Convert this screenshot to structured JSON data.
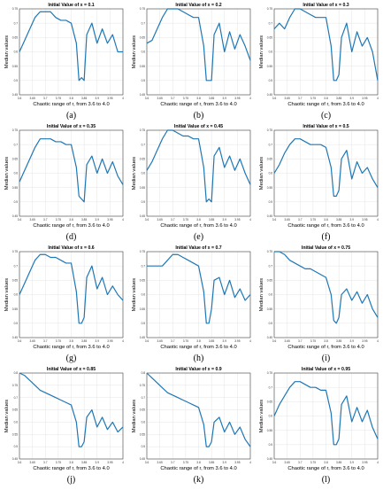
{
  "chart_data": [
    {
      "type": "line",
      "label": "(a)",
      "title": "Initial Value of x = 0.1",
      "xlabel": "Chaotic range of r, from 3.6 to 4.0",
      "ylabel": "Median values",
      "xlim": [
        3.6,
        4.0
      ],
      "ylim": [
        0.45,
        0.75
      ],
      "xticks": [
        "3.6",
        "3.65",
        "3.7",
        "3.75",
        "3.8",
        "3.85",
        "3.9",
        "3.95",
        "4"
      ],
      "yticks": [
        "0.45",
        "0.5",
        "0.55",
        "0.6",
        "0.65",
        "0.7",
        "0.75"
      ],
      "grid": true,
      "x": [
        3.6,
        3.62,
        3.64,
        3.66,
        3.68,
        3.7,
        3.72,
        3.74,
        3.76,
        3.78,
        3.8,
        3.82,
        3.83,
        3.84,
        3.85,
        3.86,
        3.88,
        3.9,
        3.92,
        3.94,
        3.96,
        3.98,
        4.0
      ],
      "y": [
        0.6,
        0.64,
        0.68,
        0.72,
        0.74,
        0.74,
        0.74,
        0.72,
        0.71,
        0.71,
        0.7,
        0.63,
        0.5,
        0.51,
        0.5,
        0.66,
        0.7,
        0.63,
        0.68,
        0.63,
        0.66,
        0.6,
        0.6
      ]
    },
    {
      "type": "line",
      "label": "(b)",
      "title": "Initial Value of x = 0.2",
      "xlabel": "Chaotic range of r, from 3.6 to 4.0",
      "ylabel": "Median values",
      "xlim": [
        3.6,
        4.0
      ],
      "ylim": [
        0.45,
        0.75
      ],
      "xticks": [
        "3.6",
        "3.65",
        "3.7",
        "3.75",
        "3.8",
        "3.85",
        "3.9",
        "3.95",
        "4"
      ],
      "yticks": [
        "0.45",
        "0.5",
        "0.55",
        "0.6",
        "0.65",
        "0.7",
        "0.75"
      ],
      "grid": true,
      "x": [
        3.6,
        3.62,
        3.64,
        3.66,
        3.68,
        3.7,
        3.72,
        3.74,
        3.76,
        3.78,
        3.8,
        3.82,
        3.83,
        3.84,
        3.85,
        3.86,
        3.88,
        3.9,
        3.92,
        3.94,
        3.96,
        3.98,
        4.0
      ],
      "y": [
        0.63,
        0.64,
        0.68,
        0.72,
        0.75,
        0.75,
        0.75,
        0.74,
        0.73,
        0.72,
        0.72,
        0.62,
        0.5,
        0.5,
        0.5,
        0.66,
        0.7,
        0.6,
        0.67,
        0.61,
        0.66,
        0.62,
        0.57
      ]
    },
    {
      "type": "line",
      "label": "(c)",
      "title": "Initial Value of x = 0.3",
      "xlabel": "Chaotic range of r, from 3.6 to 4.0",
      "ylabel": "Median values",
      "xlim": [
        3.6,
        4.0
      ],
      "ylim": [
        0.45,
        0.75
      ],
      "xticks": [
        "3.6",
        "3.65",
        "3.7",
        "3.75",
        "3.8",
        "3.85",
        "3.9",
        "3.95",
        "4"
      ],
      "yticks": [
        "0.45",
        "0.5",
        "0.55",
        "0.6",
        "0.65",
        "0.7",
        "0.75"
      ],
      "grid": true,
      "x": [
        3.6,
        3.62,
        3.64,
        3.66,
        3.68,
        3.7,
        3.72,
        3.74,
        3.76,
        3.78,
        3.8,
        3.82,
        3.83,
        3.84,
        3.85,
        3.86,
        3.88,
        3.9,
        3.92,
        3.94,
        3.96,
        3.98,
        4.0
      ],
      "y": [
        0.68,
        0.7,
        0.68,
        0.72,
        0.75,
        0.75,
        0.74,
        0.73,
        0.72,
        0.72,
        0.72,
        0.62,
        0.5,
        0.5,
        0.52,
        0.65,
        0.7,
        0.6,
        0.67,
        0.62,
        0.65,
        0.6,
        0.5
      ]
    },
    {
      "type": "line",
      "label": "(d)",
      "title": "Initial Value of x = 0.35",
      "xlabel": "Chaotic range of r, from 3.6 to 4.0",
      "ylabel": "Median values",
      "xlim": [
        3.6,
        4.0
      ],
      "ylim": [
        0.45,
        0.75
      ],
      "xticks": [
        "3.6",
        "3.65",
        "3.7",
        "3.75",
        "3.8",
        "3.85",
        "3.9",
        "3.95",
        "4"
      ],
      "yticks": [
        "0.45",
        "0.5",
        "0.55",
        "0.6",
        "0.65",
        "0.7",
        "0.75"
      ],
      "grid": true,
      "x": [
        3.6,
        3.62,
        3.64,
        3.66,
        3.68,
        3.7,
        3.72,
        3.74,
        3.76,
        3.78,
        3.8,
        3.82,
        3.83,
        3.84,
        3.85,
        3.86,
        3.88,
        3.9,
        3.92,
        3.94,
        3.96,
        3.98,
        4.0
      ],
      "y": [
        0.57,
        0.61,
        0.65,
        0.69,
        0.72,
        0.72,
        0.72,
        0.71,
        0.71,
        0.7,
        0.7,
        0.62,
        0.52,
        0.51,
        0.5,
        0.63,
        0.66,
        0.6,
        0.65,
        0.6,
        0.64,
        0.59,
        0.56
      ]
    },
    {
      "type": "line",
      "label": "(e)",
      "title": "Initial Value of x = 0.45",
      "xlabel": "Chaotic range of r, from 3.6 to 4.0",
      "ylabel": "Median values",
      "xlim": [
        3.6,
        4.0
      ],
      "ylim": [
        0.45,
        0.75
      ],
      "xticks": [
        "3.6",
        "3.65",
        "3.7",
        "3.75",
        "3.8",
        "3.85",
        "3.9",
        "3.95",
        "4"
      ],
      "yticks": [
        "0.45",
        "0.5",
        "0.55",
        "0.6",
        "0.65",
        "0.7",
        "0.75"
      ],
      "grid": true,
      "x": [
        3.6,
        3.62,
        3.64,
        3.66,
        3.68,
        3.7,
        3.72,
        3.74,
        3.76,
        3.78,
        3.8,
        3.82,
        3.83,
        3.84,
        3.85,
        3.86,
        3.88,
        3.9,
        3.92,
        3.94,
        3.96,
        3.98,
        4.0
      ],
      "y": [
        0.61,
        0.64,
        0.68,
        0.72,
        0.75,
        0.75,
        0.74,
        0.73,
        0.73,
        0.72,
        0.72,
        0.62,
        0.5,
        0.51,
        0.5,
        0.66,
        0.69,
        0.62,
        0.66,
        0.61,
        0.65,
        0.6,
        0.56
      ]
    },
    {
      "type": "line",
      "label": "(f)",
      "title": "Initial Value of x = 0.5",
      "xlabel": "Chaotic range of r, from 3.6 to 4.0",
      "ylabel": "Median values",
      "xlim": [
        3.6,
        4.0
      ],
      "ylim": [
        0.45,
        0.75
      ],
      "xticks": [
        "3.6",
        "3.65",
        "3.7",
        "3.75",
        "3.8",
        "3.85",
        "3.9",
        "3.95",
        "4"
      ],
      "yticks": [
        "0.45",
        "0.5",
        "0.55",
        "0.6",
        "0.65",
        "0.7",
        "0.75"
      ],
      "grid": true,
      "x": [
        3.6,
        3.62,
        3.64,
        3.66,
        3.68,
        3.7,
        3.72,
        3.74,
        3.76,
        3.78,
        3.8,
        3.82,
        3.83,
        3.84,
        3.85,
        3.86,
        3.88,
        3.9,
        3.92,
        3.94,
        3.96,
        3.98,
        4.0
      ],
      "y": [
        0.6,
        0.63,
        0.67,
        0.7,
        0.72,
        0.72,
        0.71,
        0.7,
        0.7,
        0.7,
        0.69,
        0.62,
        0.52,
        0.52,
        0.54,
        0.65,
        0.68,
        0.58,
        0.64,
        0.6,
        0.62,
        0.58,
        0.55
      ]
    },
    {
      "type": "line",
      "label": "(g)",
      "title": "Initial Value of x = 0.6",
      "xlabel": "Chaotic range of r, from 3.6 to 4.0",
      "ylabel": "Median values",
      "xlim": [
        3.6,
        4.0
      ],
      "ylim": [
        0.45,
        0.75
      ],
      "xticks": [
        "3.6",
        "3.65",
        "3.7",
        "3.75",
        "3.8",
        "3.85",
        "3.9",
        "3.95",
        "4"
      ],
      "yticks": [
        "0.45",
        "0.5",
        "0.55",
        "0.6",
        "0.65",
        "0.7",
        "0.75"
      ],
      "grid": true,
      "x": [
        3.6,
        3.62,
        3.64,
        3.66,
        3.68,
        3.7,
        3.72,
        3.74,
        3.76,
        3.78,
        3.8,
        3.82,
        3.83,
        3.84,
        3.85,
        3.86,
        3.88,
        3.9,
        3.92,
        3.94,
        3.96,
        3.98,
        4.0
      ],
      "y": [
        0.6,
        0.64,
        0.68,
        0.72,
        0.74,
        0.74,
        0.73,
        0.73,
        0.72,
        0.71,
        0.71,
        0.61,
        0.5,
        0.5,
        0.52,
        0.66,
        0.7,
        0.62,
        0.66,
        0.6,
        0.63,
        0.6,
        0.58
      ]
    },
    {
      "type": "line",
      "label": "(h)",
      "title": "Initial Value of x = 0.7",
      "xlabel": "Chaotic range of r, from 3.6 to 4.0",
      "ylabel": "Median values",
      "xlim": [
        3.6,
        4.0
      ],
      "ylim": [
        0.45,
        0.75
      ],
      "xticks": [
        "3.6",
        "3.65",
        "3.7",
        "3.75",
        "3.8",
        "3.85",
        "3.9",
        "3.95",
        "4"
      ],
      "yticks": [
        "0.45",
        "0.5",
        "0.55",
        "0.6",
        "0.65",
        "0.7",
        "0.75"
      ],
      "grid": true,
      "x": [
        3.6,
        3.62,
        3.64,
        3.66,
        3.68,
        3.7,
        3.72,
        3.74,
        3.76,
        3.78,
        3.8,
        3.82,
        3.83,
        3.84,
        3.85,
        3.86,
        3.88,
        3.9,
        3.92,
        3.94,
        3.96,
        3.98,
        4.0
      ],
      "y": [
        0.7,
        0.7,
        0.7,
        0.7,
        0.72,
        0.74,
        0.74,
        0.73,
        0.72,
        0.71,
        0.7,
        0.61,
        0.5,
        0.5,
        0.55,
        0.65,
        0.66,
        0.6,
        0.65,
        0.59,
        0.62,
        0.58,
        0.6
      ]
    },
    {
      "type": "line",
      "label": "(i)",
      "title": "Initial Value of x = 0.75",
      "xlabel": "Chaotic range of r, from 3.6 to 4.0",
      "ylabel": "Median values",
      "xlim": [
        3.6,
        4.0
      ],
      "ylim": [
        0.45,
        0.75
      ],
      "xticks": [
        "3.6",
        "3.65",
        "3.7",
        "3.75",
        "3.8",
        "3.85",
        "3.9",
        "3.95",
        "4"
      ],
      "yticks": [
        "0.45",
        "0.5",
        "0.55",
        "0.6",
        "0.65",
        "0.7",
        "0.75"
      ],
      "grid": true,
      "x": [
        3.6,
        3.62,
        3.64,
        3.66,
        3.68,
        3.7,
        3.72,
        3.74,
        3.76,
        3.78,
        3.8,
        3.82,
        3.83,
        3.84,
        3.85,
        3.86,
        3.88,
        3.9,
        3.92,
        3.94,
        3.96,
        3.98,
        4.0
      ],
      "y": [
        0.75,
        0.75,
        0.74,
        0.72,
        0.71,
        0.7,
        0.69,
        0.69,
        0.68,
        0.67,
        0.66,
        0.6,
        0.51,
        0.5,
        0.52,
        0.6,
        0.62,
        0.58,
        0.61,
        0.57,
        0.6,
        0.55,
        0.52
      ]
    },
    {
      "type": "line",
      "label": "(j)",
      "title": "Initial Value of x = 0.85",
      "xlabel": "Chaotic range of r, from 3.6 to 4.0",
      "ylabel": "Median values",
      "xlim": [
        3.6,
        4.0
      ],
      "ylim": [
        0.45,
        0.8
      ],
      "xticks": [
        "3.6",
        "3.65",
        "3.7",
        "3.75",
        "3.8",
        "3.85",
        "3.9",
        "3.95",
        "4"
      ],
      "yticks": [
        "0.45",
        "0.5",
        "0.55",
        "0.6",
        "0.65",
        "0.7",
        "0.75",
        "0.8"
      ],
      "grid": true,
      "x": [
        3.6,
        3.62,
        3.64,
        3.66,
        3.68,
        3.7,
        3.72,
        3.74,
        3.76,
        3.78,
        3.8,
        3.82,
        3.83,
        3.84,
        3.85,
        3.86,
        3.88,
        3.9,
        3.92,
        3.94,
        3.96,
        3.98,
        4.0
      ],
      "y": [
        0.8,
        0.79,
        0.77,
        0.75,
        0.73,
        0.72,
        0.71,
        0.7,
        0.69,
        0.68,
        0.67,
        0.6,
        0.5,
        0.5,
        0.52,
        0.62,
        0.65,
        0.58,
        0.62,
        0.57,
        0.6,
        0.56,
        0.58
      ]
    },
    {
      "type": "line",
      "label": "(k)",
      "title": "Initial Value of x = 0.9",
      "xlabel": "Chaotic range of r, from 3.6 to 4.0",
      "ylabel": "Median values",
      "xlim": [
        3.6,
        4.0
      ],
      "ylim": [
        0.45,
        0.8
      ],
      "xticks": [
        "3.6",
        "3.65",
        "3.7",
        "3.75",
        "3.8",
        "3.85",
        "3.9",
        "3.95",
        "4"
      ],
      "yticks": [
        "0.45",
        "0.5",
        "0.55",
        "0.6",
        "0.65",
        "0.7",
        "0.75",
        "0.8"
      ],
      "grid": true,
      "x": [
        3.6,
        3.62,
        3.64,
        3.66,
        3.68,
        3.7,
        3.72,
        3.74,
        3.76,
        3.78,
        3.8,
        3.82,
        3.83,
        3.84,
        3.85,
        3.86,
        3.88,
        3.9,
        3.92,
        3.94,
        3.96,
        3.98,
        4.0
      ],
      "y": [
        0.8,
        0.78,
        0.76,
        0.74,
        0.72,
        0.71,
        0.7,
        0.69,
        0.68,
        0.67,
        0.66,
        0.59,
        0.5,
        0.5,
        0.52,
        0.6,
        0.62,
        0.56,
        0.6,
        0.55,
        0.58,
        0.53,
        0.5
      ]
    },
    {
      "type": "line",
      "label": "(l)",
      "title": "Initial Value of x = 0.95",
      "xlabel": "Chaotic range of r, from 3.6 to 4.0",
      "ylabel": "Median values",
      "xlim": [
        3.6,
        4.0
      ],
      "ylim": [
        0.45,
        0.75
      ],
      "xticks": [
        "3.6",
        "3.65",
        "3.7",
        "3.75",
        "3.8",
        "3.85",
        "3.9",
        "3.95",
        "4"
      ],
      "yticks": [
        "0.45",
        "0.5",
        "0.55",
        "0.6",
        "0.65",
        "0.7",
        "0.75"
      ],
      "grid": true,
      "x": [
        3.6,
        3.62,
        3.64,
        3.66,
        3.68,
        3.7,
        3.72,
        3.74,
        3.76,
        3.78,
        3.8,
        3.82,
        3.83,
        3.84,
        3.85,
        3.86,
        3.88,
        3.9,
        3.92,
        3.94,
        3.96,
        3.98,
        4.0
      ],
      "y": [
        0.6,
        0.64,
        0.67,
        0.7,
        0.72,
        0.72,
        0.71,
        0.7,
        0.7,
        0.69,
        0.69,
        0.61,
        0.5,
        0.5,
        0.52,
        0.64,
        0.67,
        0.58,
        0.63,
        0.58,
        0.62,
        0.56,
        0.52
      ]
    }
  ],
  "colors": {
    "line": "#1f77b4",
    "grid": "#e4e4e4",
    "axis": "#444444"
  }
}
